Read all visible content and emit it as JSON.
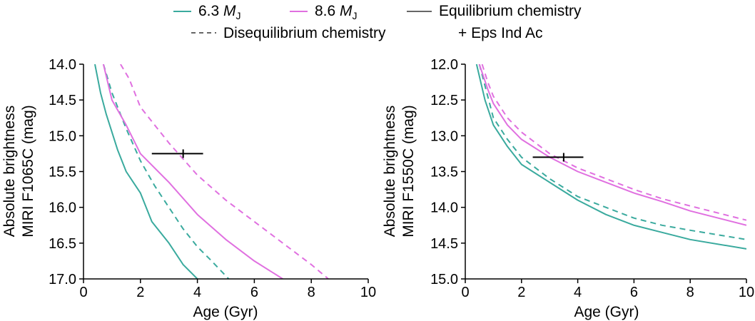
{
  "legend": {
    "items": [
      {
        "label": "6.3 ",
        "symbol": "M",
        "sub": "J",
        "kind": "line",
        "color": "#3aaa9e",
        "dash": "solid"
      },
      {
        "label": "8.6 ",
        "symbol": "M",
        "sub": "J",
        "kind": "line",
        "color": "#e070e0",
        "dash": "solid"
      },
      {
        "label": "Equilibrium chemistry",
        "kind": "line",
        "color": "#666666",
        "dash": "solid"
      },
      {
        "label": "Disequilibrium chemistry",
        "kind": "line",
        "color": "#666666",
        "dash": "dashed"
      },
      {
        "label": "+ Eps Ind Ac",
        "kind": "text"
      }
    ]
  },
  "colors": {
    "mass_6_3": "#3aaa9e",
    "mass_8_6": "#e070e0",
    "observation": "#000000"
  },
  "chart_data": [
    {
      "type": "line",
      "xlabel": "Age (Gyr)",
      "ylabel": [
        "Absolute brightness",
        "MIRI F1065C (mag)"
      ],
      "xlim": [
        0,
        10
      ],
      "ylim": [
        17.0,
        14.0
      ],
      "y_inverted": true,
      "xticks": [
        0,
        2,
        4,
        6,
        8,
        10
      ],
      "yticks": [
        14.0,
        14.5,
        15.0,
        15.5,
        16.0,
        16.5,
        17.0
      ],
      "ytick_labels": [
        "14.0",
        "14.5",
        "15.0",
        "15.5",
        "16.0",
        "16.5",
        "17.0"
      ],
      "grid": false,
      "series": [
        {
          "mass": "6.3",
          "chemistry": "equilibrium",
          "color": "#3aaa9e",
          "dash": "solid",
          "x": [
            0.4,
            0.6,
            0.8,
            1.0,
            1.2,
            1.5,
            2.0,
            2.4,
            3.0,
            3.5,
            4.0
          ],
          "y": [
            14.0,
            14.4,
            14.7,
            14.95,
            15.2,
            15.5,
            15.8,
            16.2,
            16.5,
            16.8,
            17.0
          ]
        },
        {
          "mass": "6.3",
          "chemistry": "disequilibrium",
          "color": "#3aaa9e",
          "dash": "dashed",
          "x": [
            0.7,
            1.0,
            1.5,
            2.0,
            2.5,
            3.0,
            3.5,
            4.0,
            4.5,
            5.1
          ],
          "y": [
            14.0,
            14.4,
            14.9,
            15.35,
            15.7,
            16.0,
            16.3,
            16.55,
            16.75,
            17.0
          ]
        },
        {
          "mass": "8.6",
          "chemistry": "equilibrium",
          "color": "#e070e0",
          "dash": "solid",
          "x": [
            0.7,
            1.0,
            1.5,
            2.0,
            3.0,
            4.0,
            5.0,
            6.0,
            7.0
          ],
          "y": [
            14.0,
            14.5,
            14.85,
            15.25,
            15.65,
            16.1,
            16.45,
            16.75,
            17.0
          ]
        },
        {
          "mass": "8.6",
          "chemistry": "disequilibrium",
          "color": "#e070e0",
          "dash": "dashed",
          "x": [
            1.3,
            1.6,
            2.0,
            3.0,
            4.0,
            5.0,
            6.0,
            7.0,
            8.0,
            8.6
          ],
          "y": [
            14.0,
            14.2,
            14.6,
            15.1,
            15.55,
            15.9,
            16.2,
            16.5,
            16.8,
            17.0
          ]
        }
      ],
      "observation": {
        "label": "Eps Ind Ac",
        "x": 3.5,
        "y": 15.25,
        "x_err": [
          2.4,
          4.2
        ]
      }
    },
    {
      "type": "line",
      "xlabel": "Age (Gyr)",
      "ylabel": [
        "Absolute brightness",
        "MIRI F1550C (mag)"
      ],
      "xlim": [
        0,
        10
      ],
      "ylim": [
        15.0,
        12.0
      ],
      "y_inverted": true,
      "xticks": [
        0,
        2,
        4,
        6,
        8,
        10
      ],
      "yticks": [
        12.0,
        12.5,
        13.0,
        13.5,
        14.0,
        14.5,
        15.0
      ],
      "ytick_labels": [
        "12.0",
        "12.5",
        "13.0",
        "13.5",
        "14.0",
        "14.5",
        "15.0"
      ],
      "grid": false,
      "series": [
        {
          "mass": "6.3",
          "chemistry": "equilibrium",
          "color": "#3aaa9e",
          "dash": "solid",
          "x": [
            0.4,
            0.7,
            1.0,
            1.5,
            2.0,
            3.0,
            4.0,
            5.0,
            6.0,
            7.0,
            8.0,
            10.0
          ],
          "y": [
            12.0,
            12.5,
            12.85,
            13.15,
            13.4,
            13.65,
            13.9,
            14.1,
            14.25,
            14.35,
            14.45,
            14.58
          ]
        },
        {
          "mass": "6.3",
          "chemistry": "disequilibrium",
          "color": "#3aaa9e",
          "dash": "dashed",
          "x": [
            0.5,
            0.8,
            1.0,
            1.5,
            2.0,
            3.0,
            4.0,
            5.0,
            6.0,
            7.0,
            8.0,
            10.0
          ],
          "y": [
            12.0,
            12.45,
            12.75,
            13.05,
            13.3,
            13.6,
            13.85,
            14.0,
            14.15,
            14.25,
            14.32,
            14.45
          ]
        },
        {
          "mass": "8.6",
          "chemistry": "equilibrium",
          "color": "#e070e0",
          "dash": "solid",
          "x": [
            0.5,
            0.8,
            1.0,
            1.5,
            2.0,
            3.0,
            4.0,
            5.0,
            6.0,
            7.0,
            8.0,
            10.0
          ],
          "y": [
            12.0,
            12.35,
            12.55,
            12.85,
            13.05,
            13.3,
            13.5,
            13.65,
            13.8,
            13.92,
            14.05,
            14.25
          ]
        },
        {
          "mass": "8.6",
          "chemistry": "disequilibrium",
          "color": "#e070e0",
          "dash": "dashed",
          "x": [
            0.6,
            0.8,
            1.0,
            1.5,
            2.0,
            3.0,
            4.0,
            5.0,
            6.0,
            7.0,
            8.0,
            10.0
          ],
          "y": [
            12.0,
            12.25,
            12.45,
            12.75,
            12.95,
            13.25,
            13.45,
            13.6,
            13.75,
            13.88,
            13.98,
            14.18
          ]
        }
      ],
      "observation": {
        "label": "Eps Ind Ac",
        "x": 3.5,
        "y": 13.3,
        "x_err": [
          2.4,
          4.2
        ]
      }
    }
  ]
}
